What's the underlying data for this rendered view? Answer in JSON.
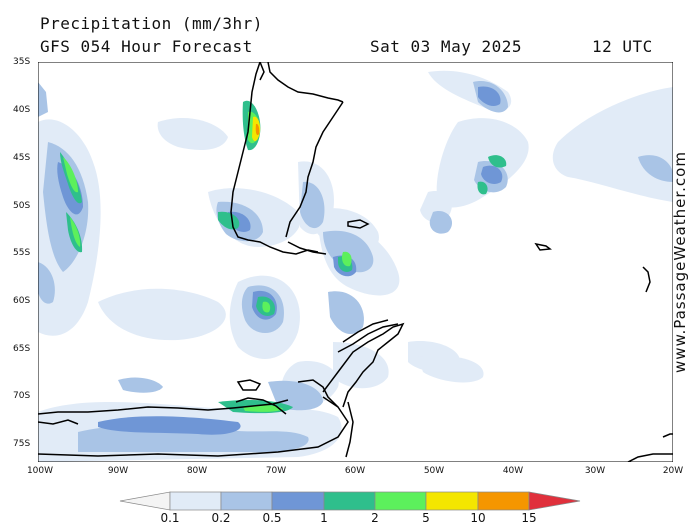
{
  "header": {
    "title": "Precipitation (mm/3hr)",
    "subtitle": "GFS 054 Hour Forecast",
    "date": "Sat 03 May 2025",
    "time": "12 UTC"
  },
  "map": {
    "lat_labels": [
      "35S",
      "40S",
      "45S",
      "50S",
      "55S",
      "60S",
      "65S",
      "70S",
      "75S"
    ],
    "lon_labels": [
      "100W",
      "90W",
      "80W",
      "70W",
      "60W",
      "50W",
      "40W",
      "30W",
      "20W"
    ]
  },
  "watermark": "www.PassageWeather.com",
  "legend": {
    "labels": [
      "0.1",
      "0.2",
      "0.5",
      "1",
      "2",
      "5",
      "10",
      "15"
    ],
    "colors": [
      "#f4f4f4",
      "#e1ebf7",
      "#a9c4e6",
      "#6f96d6",
      "#2fbf8c",
      "#5cf05c",
      "#f4e600",
      "#f59600",
      "#e0303c"
    ]
  }
}
